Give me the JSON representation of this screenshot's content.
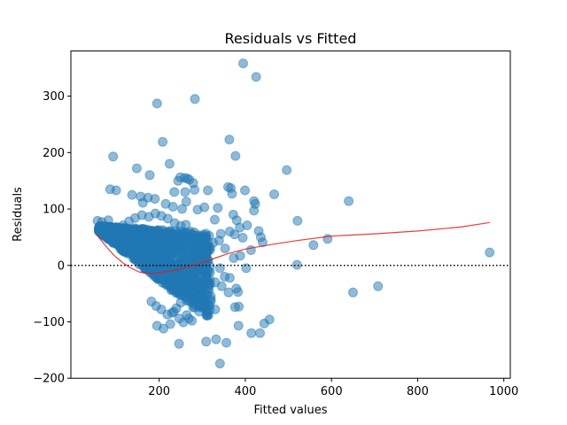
{
  "chart_data": {
    "type": "scatter",
    "title": "Residuals vs Fitted",
    "xlabel": "Fitted values",
    "ylabel": "Residuals",
    "xlim": [
      -5,
      1015
    ],
    "ylim": [
      -200,
      380
    ],
    "xticks": [
      200,
      400,
      600,
      800,
      1000
    ],
    "yticks": [
      -200,
      -100,
      0,
      100,
      200,
      300
    ],
    "xtick_labels": [
      "200",
      "400",
      "600",
      "800",
      "1000"
    ],
    "ytick_labels": [
      "−200",
      "−100",
      "0",
      "100",
      "200",
      "300"
    ],
    "grid": false,
    "legend": null,
    "colors": {
      "points": "#1f77b4",
      "point_alpha": 0.5,
      "lowess": "#e41a1c",
      "zero_line": "#000000"
    },
    "zero_line": {
      "y": 0,
      "style": "dotted"
    },
    "series": [
      {
        "name": "observations",
        "points": [
          [
            395,
            358
          ],
          [
            425,
            334
          ],
          [
            195,
            287
          ],
          [
            283,
            295
          ],
          [
            208,
            219
          ],
          [
            363,
            223
          ],
          [
            224,
            180
          ],
          [
            93,
            193
          ],
          [
            377,
            194
          ],
          [
            496,
            169
          ],
          [
            148,
            172
          ],
          [
            259,
            155
          ],
          [
            249,
            156
          ],
          [
            265,
            154
          ],
          [
            178,
            160
          ],
          [
            244,
            150
          ],
          [
            270,
            152
          ],
          [
            279,
            146
          ],
          [
            282,
            134
          ],
          [
            235,
            130
          ],
          [
            260,
            130
          ],
          [
            313,
            133
          ],
          [
            399,
            133
          ],
          [
            366,
            137
          ],
          [
            360,
            139
          ],
          [
            369,
            127
          ],
          [
            420,
            114
          ],
          [
            640,
            114
          ],
          [
            467,
            126
          ],
          [
            86,
            135
          ],
          [
            100,
            133
          ],
          [
            137,
            125
          ],
          [
            157,
            122
          ],
          [
            174,
            120
          ],
          [
            190,
            118
          ],
          [
            162,
            111
          ],
          [
            215,
            109
          ],
          [
            232,
            104
          ],
          [
            253,
            100
          ],
          [
            263,
            113
          ],
          [
            289,
            99
          ],
          [
            305,
            103
          ],
          [
            336,
            102
          ],
          [
            329,
            81
          ],
          [
            372,
            90
          ],
          [
            380,
            80
          ],
          [
            387,
            67
          ],
          [
            420,
            97
          ],
          [
            423,
            109
          ],
          [
            431,
            61
          ],
          [
            436,
            50
          ],
          [
            521,
            79
          ],
          [
            558,
            36
          ],
          [
            591,
            47
          ],
          [
            650,
            -48
          ],
          [
            708,
            -37
          ],
          [
            520,
            1
          ],
          [
            967,
            23
          ],
          [
            343,
            56
          ],
          [
            364,
            60
          ],
          [
            375,
            55
          ],
          [
            394,
            49
          ],
          [
            404,
            71
          ],
          [
            413,
            27
          ],
          [
            440,
            41
          ],
          [
            309,
            34
          ],
          [
            325,
            40
          ],
          [
            339,
            44
          ],
          [
            353,
            30
          ],
          [
            373,
            13
          ],
          [
            388,
            17
          ],
          [
            402,
            -5
          ],
          [
            341,
            -5
          ],
          [
            352,
            -20
          ],
          [
            330,
            -30
          ],
          [
            364,
            -22
          ],
          [
            379,
            -41
          ],
          [
            383,
            -47
          ],
          [
            361,
            -48
          ],
          [
            345,
            -37
          ],
          [
            320,
            -55
          ],
          [
            306,
            -63
          ],
          [
            291,
            -55
          ],
          [
            295,
            -70
          ],
          [
            312,
            -80
          ],
          [
            330,
            -78
          ],
          [
            376,
            -74
          ],
          [
            385,
            -73
          ],
          [
            384,
            -107
          ],
          [
            434,
            -120
          ],
          [
            414,
            -120
          ],
          [
            356,
            -137
          ],
          [
            332,
            -131
          ],
          [
            309,
            -135
          ],
          [
            246,
            -139
          ],
          [
            341,
            -174
          ],
          [
            456,
            -96
          ],
          [
            444,
            -103
          ],
          [
            234,
            -82
          ],
          [
            247,
            -94
          ],
          [
            256,
            -101
          ],
          [
            269,
            -94
          ],
          [
            264,
            -88
          ],
          [
            276,
            -98
          ],
          [
            226,
            -104
          ],
          [
            210,
            -112
          ],
          [
            195,
            -107
          ],
          [
            57,
            79
          ],
          [
            67,
            77
          ],
          [
            72,
            69
          ],
          [
            76,
            63
          ],
          [
            82,
            80
          ],
          [
            98,
            59
          ],
          [
            107,
            65
          ],
          [
            116,
            71
          ],
          [
            130,
            78
          ],
          [
            144,
            84
          ],
          [
            160,
            89
          ],
          [
            176,
            86
          ],
          [
            191,
            92
          ],
          [
            205,
            88
          ],
          [
            220,
            83
          ],
          [
            236,
            75
          ],
          [
            250,
            70
          ],
          [
            262,
            72
          ],
          [
            272,
            60
          ],
          [
            281,
            53
          ],
          [
            292,
            46
          ],
          [
            300,
            22
          ],
          [
            296,
            4
          ],
          [
            287,
            -10
          ],
          [
            276,
            -27
          ],
          [
            268,
            -42
          ],
          [
            258,
            -52
          ],
          [
            250,
            -66
          ],
          [
            240,
            -76
          ],
          [
            230,
            -84
          ],
          [
            219,
            -87
          ],
          [
            205,
            -78
          ],
          [
            193,
            -72
          ],
          [
            182,
            -64
          ]
        ]
      }
    ],
    "dense_cluster": {
      "description": "Dense mass of overlapping points between fitted ~60-320, residual ~-90 to +90, with lower boundary approximately residual = 60 - 0.62*(fitted-60)",
      "x_range": [
        60,
        320
      ],
      "y_range": [
        -90,
        90
      ],
      "approx_count": 1400,
      "lower_bound_line": {
        "x0": 60,
        "y0": 60,
        "slope": -0.62
      }
    },
    "lowess": {
      "x": [
        55,
        75,
        95,
        115,
        135,
        155,
        170,
        185,
        200,
        225,
        250,
        275,
        300,
        330,
        360,
        400,
        460,
        520,
        600,
        700,
        800,
        900,
        967
      ],
      "y": [
        54,
        35,
        18,
        5,
        -5,
        -12,
        -14,
        -14,
        -13,
        -10,
        -6,
        -1,
        5,
        13,
        21,
        29,
        37,
        44,
        52,
        56,
        61,
        68,
        76
      ]
    }
  }
}
